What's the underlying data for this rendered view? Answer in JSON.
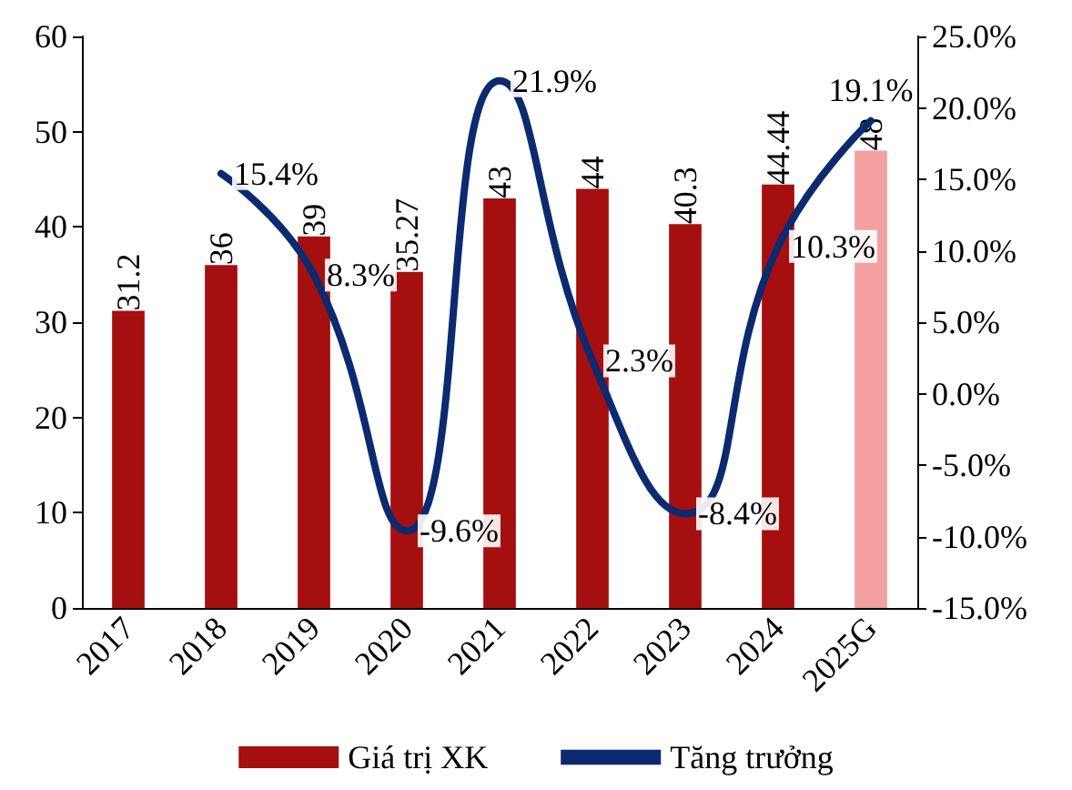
{
  "chart_data": {
    "type": "bar",
    "categories": [
      "2017",
      "2018",
      "2019",
      "2020",
      "2021",
      "2022",
      "2023",
      "2024",
      "2025G"
    ],
    "series": [
      {
        "name": "Giá trị XK",
        "colors": [
          "#a50f0f",
          "#a50f0f",
          "#a50f0f",
          "#a50f0f",
          "#a50f0f",
          "#a50f0f",
          "#a50f0f",
          "#a50f0f",
          "#f4a0a0"
        ],
        "values": [
          31.2,
          36,
          39,
          35.27,
          43,
          44,
          40.3,
          44.44,
          48
        ],
        "value_labels": [
          "31.2",
          "36",
          "39",
          "35.27",
          "43",
          "44",
          "40.3",
          "44.44",
          "48"
        ]
      },
      {
        "name": "Tăng trưởng",
        "type": "line",
        "axis": "y2",
        "color": "#0b2a6f",
        "values": [
          null,
          15.4,
          8.3,
          -9.6,
          21.9,
          2.3,
          -8.4,
          10.3,
          19.1
        ],
        "value_labels": [
          null,
          "15.4%",
          "8.3%",
          "-9.6%",
          "21.9%",
          "2.3%",
          "-8.4%",
          "10.3%",
          "19.1%"
        ]
      }
    ],
    "ylim": [
      0,
      60
    ],
    "yticks": [
      0,
      10,
      20,
      30,
      40,
      50,
      60
    ],
    "y2lim": [
      -15,
      25
    ],
    "y2ticks": [
      {
        "value": -15,
        "label": "-15.0%"
      },
      {
        "value": -10,
        "label": "-10.0%"
      },
      {
        "value": -5,
        "label": "-5.0%"
      },
      {
        "value": 0,
        "label": "0.0%"
      },
      {
        "value": 5,
        "label": "5.0%"
      },
      {
        "value": 10,
        "label": "10.0%"
      },
      {
        "value": 15,
        "label": "15.0%"
      },
      {
        "value": 20,
        "label": "20.0%"
      },
      {
        "value": 25,
        "label": "25.0%"
      }
    ],
    "grid": false,
    "legend": "bottom",
    "marker": "none",
    "line_style": "solid"
  }
}
